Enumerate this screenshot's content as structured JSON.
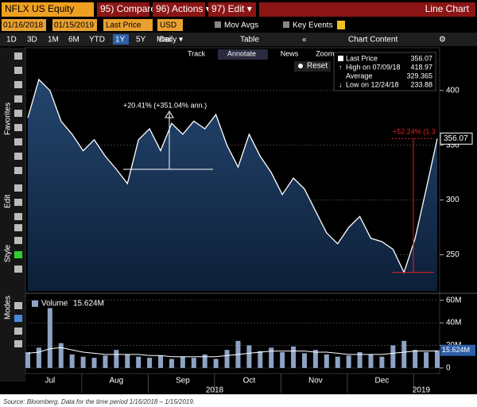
{
  "ui": {
    "ticker": "NFLX US Equity",
    "menu": [
      "95) Compare",
      "96) Actions ▾",
      "97) Edit ▾"
    ],
    "view": "Line Chart",
    "start_date": "01/16/2018",
    "end_date": "01/15/2019",
    "field": "Last Price",
    "currency": "USD",
    "mov_avgs": "Mov Avgs",
    "key_events": "Key Events",
    "periods": [
      "1D",
      "3D",
      "1M",
      "6M",
      "YTD",
      "1Y",
      "5Y",
      "Max"
    ],
    "frequency": "Daily ▾",
    "table": "Table",
    "chart_content": "Chart Content",
    "tools": [
      "Track",
      "Annotate",
      "News",
      "Zoom"
    ],
    "reset": "Reset",
    "side_labels": [
      "Favorites",
      "Edit",
      "Style",
      "Modes"
    ],
    "caption": "Source: Bloomberg. Data for the time period 1/16/2018 – 1/15/2019."
  },
  "chart_data": [
    {
      "type": "area",
      "categories": [
        null,
        null,
        "Jul",
        null,
        null,
        null,
        null,
        null,
        "Aug",
        null,
        null,
        null,
        null,
        null,
        "Sep",
        null,
        null,
        null,
        null,
        null,
        "Oct",
        null,
        null,
        null,
        null,
        null,
        "Nov",
        null,
        null,
        null,
        null,
        null,
        "Dec",
        null,
        null,
        null,
        null,
        null
      ],
      "year_labels": [
        "2018",
        "2019"
      ],
      "series": [
        {
          "name": "Last Price",
          "color": "#ffffff",
          "values": [
            375,
            410,
            400,
            372,
            360,
            345,
            355,
            340,
            328,
            315,
            355,
            365,
            345,
            370,
            360,
            372,
            365,
            378,
            350,
            330,
            360,
            340,
            325,
            305,
            320,
            310,
            290,
            270,
            260,
            275,
            285,
            265,
            262,
            255,
            234,
            265,
            310,
            356.07
          ]
        }
      ],
      "stats": [
        {
          "label": "Last Price",
          "value": 356.07
        },
        {
          "label": "High on 07/09/18",
          "value": 418.97
        },
        {
          "label": "Average",
          "value": 329.365
        },
        {
          "label": "Low on 12/24/18",
          "value": 233.88
        }
      ],
      "annotations": [
        "+20.41% (+351.04% ann.)",
        "+52.24% (1.3"
      ],
      "ylim": [
        217,
        439
      ],
      "yticks": [
        250,
        300,
        350,
        400
      ],
      "grid": true
    },
    {
      "type": "bar",
      "series": [
        {
          "name": "Volume",
          "color": "#8ea3c4",
          "values": [
            14,
            18,
            53,
            22,
            12,
            10,
            9,
            11,
            16,
            12,
            10,
            9,
            11,
            8,
            10,
            9,
            12,
            8,
            16,
            24,
            20,
            15,
            18,
            14,
            19,
            13,
            16,
            12,
            10,
            11,
            14,
            12,
            10,
            20,
            24,
            16,
            14,
            15.624
          ]
        },
        {
          "color": "#ffffff",
          "values": [
            13,
            14,
            17,
            18,
            16,
            14,
            13,
            12,
            12,
            12,
            12,
            11,
            11,
            10,
            10,
            10,
            10,
            10,
            11,
            12,
            13,
            14,
            15,
            15,
            15,
            15,
            14,
            14,
            13,
            12,
            12,
            12,
            12,
            13,
            14,
            15,
            15,
            15
          ]
        }
      ],
      "last_label": {
        "value": 15.624,
        "label": "15.624M"
      },
      "ylim": [
        -5,
        64
      ],
      "yticks": [
        {
          "value": 0,
          "label": "0"
        },
        {
          "value": 20,
          "label": "20M"
        },
        {
          "value": 40,
          "label": "40M"
        },
        {
          "value": 60,
          "label": "60M"
        }
      ],
      "grid": true
    }
  ]
}
